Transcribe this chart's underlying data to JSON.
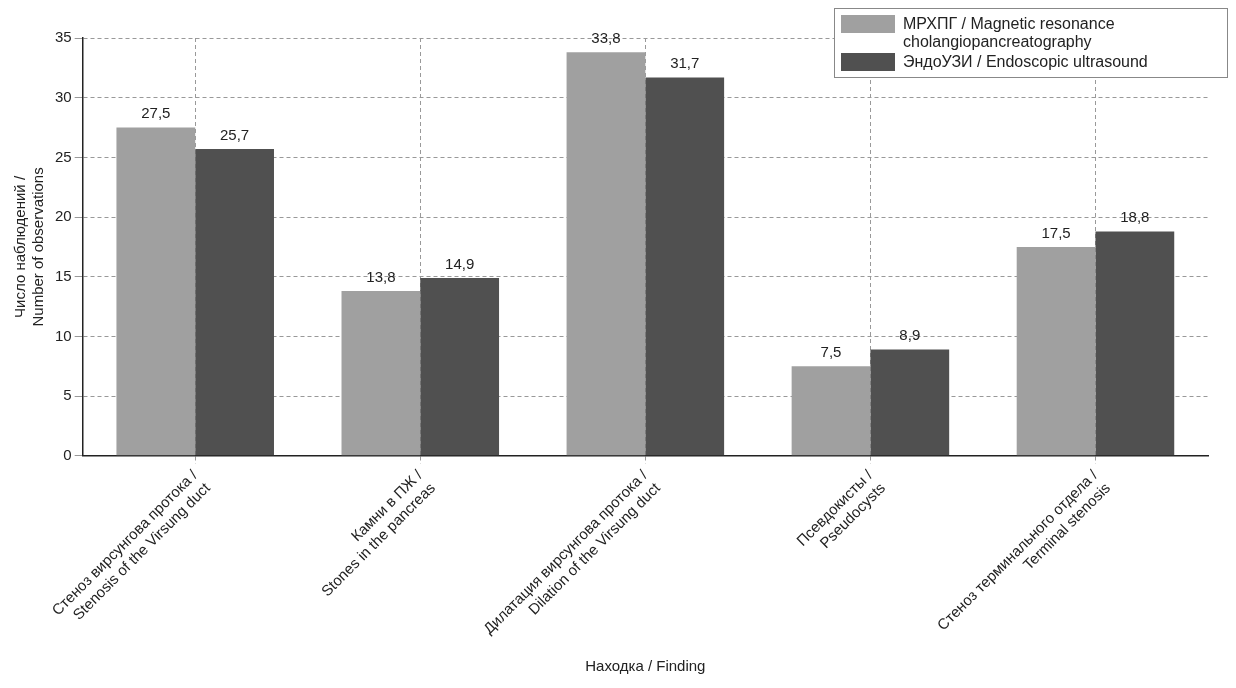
{
  "chart_data": {
    "type": "bar",
    "xlabel": "Находка / Finding",
    "ylabel": "Число наблюдений /\nNumber of observations",
    "categories": [
      "Стеноз вирсунгова протока /\nStenosis of the Virsung duct",
      "Камни в ПЖ /\nStones in the pancreas",
      "Дилатация вирсунгова протока /\nDilation of the Virsung duct",
      "Псевдокисты /\nPseudocysts",
      "Стеноз терминального отдела /\nTerminal stenosis"
    ],
    "series": [
      {
        "name": "МРХПГ / Magnetic resonance cholangiopancreatography",
        "color": "#a0a0a0",
        "values": [
          27.5,
          13.8,
          33.8,
          7.5,
          17.5
        ],
        "value_labels": [
          "27,5",
          "13,8",
          "33,8",
          "7,5",
          "17,5"
        ]
      },
      {
        "name": "ЭндоУЗИ / Endoscopic ultrasound",
        "color": "#505050",
        "values": [
          25.7,
          14.9,
          31.7,
          8.9,
          18.8
        ],
        "value_labels": [
          "25,7",
          "14,9",
          "31,7",
          "8,9",
          "18,8"
        ]
      }
    ],
    "ylim": [
      0,
      35
    ],
    "yticks": [
      0,
      5,
      10,
      15,
      20,
      25,
      30,
      35
    ],
    "grid": true,
    "legend": "top right"
  }
}
